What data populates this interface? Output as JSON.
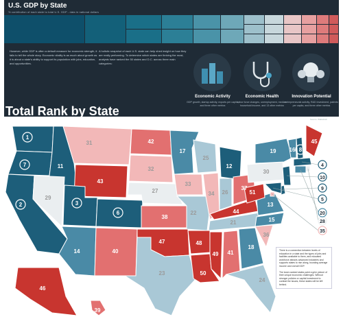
{
  "header": {
    "title": "U.S. GDP by State",
    "subtitle": "% contribution of each state to total U.S. GDP - data in national dollars"
  },
  "intro": {
    "left": "However, while GDP is often a default measure for economic strength, it fails to tell the whole story. Economic vitality is as much about growth as it is about a state's ability to support its population with jobs, education, and opportunities.",
    "right": "A holistic snapshot of each U.S. state can help shed insight on how they are really performing. To determine which states are thriving the most, analysts have ranked the 50 states and D.C. across three main categories:"
  },
  "cards": [
    {
      "title": "Economic Activity",
      "text": "GDP growth, startup activity, exports per capita, and three other metrics",
      "icon": "city-skyline-icon"
    },
    {
      "title": "Economic Health",
      "text": "labor force changes, unemployment, median household income, and 13 other metrics",
      "icon": "stethoscope-icon"
    },
    {
      "title": "Innovation Potential",
      "text": "entrepreneurial activity, R&D investment, patents per capita, and three other metrics",
      "icon": "lightbulb-icon"
    }
  ],
  "credit": "Source: WalletHub",
  "rank_title": "Total Rank by State",
  "note": {
    "p1": "There is a connection between levels of education in a state and the types of jobs and facilities available to them, and educated workforce attracts advanced industries and supports states to rise along, boosting average income and overall GDP.",
    "p2": "The lower-ranked states paint a grim picture of their unique economic challenges. Without stronger policies or capital investment to combat the issues, these states will be left behind."
  },
  "colors": {
    "dark_blue": "#1d5e7a",
    "mid_blue": "#4a8aa6",
    "light_blue": "#a9c8d6",
    "pale": "#eaeef0",
    "light_red": "#f2b8b8",
    "mid_red": "#e27070",
    "dark_red": "#c8352f",
    "header_bg": "#1f2b36"
  },
  "ranks": [
    {
      "state": "WA",
      "rank": "1"
    },
    {
      "state": "OR",
      "rank": "7"
    },
    {
      "state": "CA",
      "rank": "2"
    },
    {
      "state": "ID",
      "rank": "11"
    },
    {
      "state": "NV",
      "rank": "29"
    },
    {
      "state": "MT",
      "rank": "31"
    },
    {
      "state": "WY",
      "rank": "43"
    },
    {
      "state": "UT",
      "rank": "3"
    },
    {
      "state": "AZ",
      "rank": "14"
    },
    {
      "state": "CO",
      "rank": "6"
    },
    {
      "state": "NM",
      "rank": "40"
    },
    {
      "state": "ND",
      "rank": "42"
    },
    {
      "state": "SD",
      "rank": "32"
    },
    {
      "state": "NE",
      "rank": "27"
    },
    {
      "state": "KS",
      "rank": "38"
    },
    {
      "state": "OK",
      "rank": "47"
    },
    {
      "state": "TX",
      "rank": "23"
    },
    {
      "state": "MN",
      "rank": "17"
    },
    {
      "state": "IA",
      "rank": "33"
    },
    {
      "state": "MO",
      "rank": "22"
    },
    {
      "state": "AR",
      "rank": "48"
    },
    {
      "state": "LA",
      "rank": "50"
    },
    {
      "state": "WI",
      "rank": "25"
    },
    {
      "state": "IL",
      "rank": "34"
    },
    {
      "state": "MI",
      "rank": "12"
    },
    {
      "state": "IN",
      "rank": "26"
    },
    {
      "state": "OH",
      "rank": "37"
    },
    {
      "state": "KY",
      "rank": "44"
    },
    {
      "state": "TN",
      "rank": "21"
    },
    {
      "state": "MS",
      "rank": "49"
    },
    {
      "state": "AL",
      "rank": "41"
    },
    {
      "state": "GA",
      "rank": "18"
    },
    {
      "state": "FL",
      "rank": "24"
    },
    {
      "state": "SC",
      "rank": "36"
    },
    {
      "state": "NC",
      "rank": "15"
    },
    {
      "state": "VA",
      "rank": "13"
    },
    {
      "state": "WV",
      "rank": "51"
    },
    {
      "state": "PA",
      "rank": "30"
    },
    {
      "state": "NY",
      "rank": "19"
    },
    {
      "state": "ME",
      "rank": "45"
    },
    {
      "state": "NH",
      "rank": "8"
    },
    {
      "state": "VT",
      "rank": "16"
    },
    {
      "state": "AK",
      "rank": "46"
    },
    {
      "state": "HI",
      "rank": "39"
    },
    {
      "state": "MA",
      "rank": "4"
    },
    {
      "state": "RI",
      "rank": "28"
    },
    {
      "state": "CT",
      "rank": "20"
    },
    {
      "state": "NJ",
      "rank": "10"
    },
    {
      "state": "DE",
      "rank": "9"
    },
    {
      "state": "MD",
      "rank": "5"
    },
    {
      "state": "DC",
      "rank": "35"
    }
  ]
}
